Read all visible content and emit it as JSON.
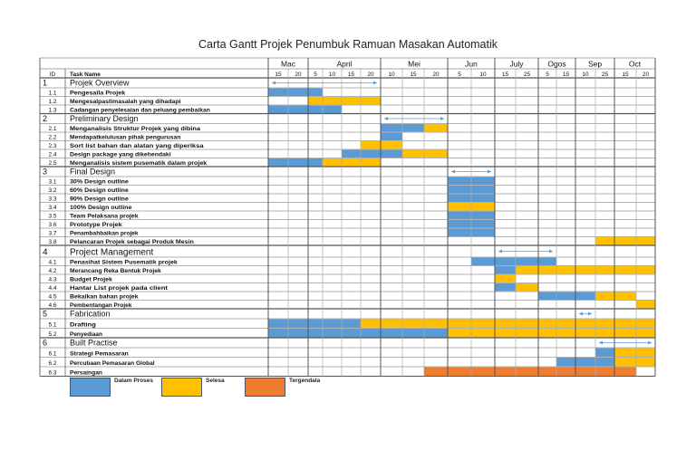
{
  "chart_data": {
    "type": "gantt",
    "title": "Carta Gantt Projek Penumbuk Ramuan Masakan Automatik",
    "header": {
      "id_label": "ID",
      "task_label": "Task Name"
    },
    "months": [
      {
        "name": "Mac",
        "days": [
          "15",
          "20"
        ]
      },
      {
        "name": "April",
        "days": [
          "5",
          "10",
          "15",
          "20"
        ]
      },
      {
        "name": "Mei",
        "days": [
          "10",
          "15",
          "20"
        ]
      },
      {
        "name": "Jun",
        "days": [
          "5",
          "10"
        ]
      },
      {
        "name": "July",
        "days": [
          "15",
          "25"
        ]
      },
      {
        "name": "Ogos",
        "days": [
          "5",
          "15"
        ]
      },
      {
        "name": "Sep",
        "days": [
          "10",
          "25"
        ]
      },
      {
        "name": "Oct",
        "days": [
          "15",
          "20"
        ]
      }
    ],
    "status_colors": {
      "in_progress": "#5b9bd5",
      "done": "#ffc000",
      "delayed": "#ed7d31"
    },
    "legend": [
      {
        "status": "in_progress",
        "label": "Dalam Proses"
      },
      {
        "status": "done",
        "label": "Selesa"
      },
      {
        "status": "delayed",
        "label": "Tergendala"
      }
    ],
    "sections": [
      {
        "id": "1",
        "name": "Projek Overview",
        "span": [
          0,
          5
        ],
        "tasks": [
          {
            "id": "1.1",
            "name": "Pengesaila Projek",
            "bars": [
              {
                "status": "in_progress",
                "start": 0,
                "end": 2
              }
            ]
          },
          {
            "id": "1.2",
            "name": "Mengesalpastimasalah yang dihadapi",
            "bars": [
              {
                "status": "done",
                "start": 2,
                "end": 5
              }
            ]
          },
          {
            "id": "1.3",
            "name": "Cadangan penyelesaian dan peluang pembaikan",
            "bars": [
              {
                "status": "in_progress",
                "start": 0,
                "end": 3
              }
            ]
          }
        ]
      },
      {
        "id": "2",
        "name": "Preliminary Design",
        "span": [
          6,
          8
        ],
        "tasks": [
          {
            "id": "2.1",
            "name": "Menganalisis Struktur Projek yang dibina",
            "bars": [
              {
                "status": "in_progress",
                "start": 6,
                "end": 7
              },
              {
                "status": "done",
                "start": 8,
                "end": 8
              }
            ]
          },
          {
            "id": "2.2",
            "name": "Mendapatkelulusan pihak pengurusan",
            "bars": [
              {
                "status": "in_progress",
                "start": 6,
                "end": 6
              }
            ]
          },
          {
            "id": "2.3",
            "name": "Sort list bahan dan alatan yang diperiksa",
            "bars": [
              {
                "status": "done",
                "start": 5,
                "end": 6
              }
            ]
          },
          {
            "id": "2.4",
            "name": "Design package yang dikehendaki",
            "bars": [
              {
                "status": "in_progress",
                "start": 4,
                "end": 6
              },
              {
                "status": "done",
                "start": 7,
                "end": 8
              }
            ]
          },
          {
            "id": "2.5",
            "name": "Menganalisis sistem pusematik dalam projek",
            "bars": [
              {
                "status": "in_progress",
                "start": 0,
                "end": 2
              },
              {
                "status": "done",
                "start": 3,
                "end": 5
              }
            ]
          }
        ]
      },
      {
        "id": "3",
        "name": "Final Design",
        "span": [
          9,
          10
        ],
        "tasks": [
          {
            "id": "3.1",
            "name": "30% Design outline",
            "bars": [
              {
                "status": "in_progress",
                "start": 9,
                "end": 10
              }
            ]
          },
          {
            "id": "3.2",
            "name": "60% Design outline",
            "bars": [
              {
                "status": "in_progress",
                "start": 9,
                "end": 10
              }
            ]
          },
          {
            "id": "3.3",
            "name": "90% Design outline",
            "bars": [
              {
                "status": "in_progress",
                "start": 9,
                "end": 10
              }
            ]
          },
          {
            "id": "3.4",
            "name": "100% Design outline",
            "bars": [
              {
                "status": "done",
                "start": 9,
                "end": 10
              }
            ]
          },
          {
            "id": "3.5",
            "name": "Team Pelaksana projek",
            "bars": [
              {
                "status": "in_progress",
                "start": 9,
                "end": 10
              }
            ]
          },
          {
            "id": "3.6",
            "name": "Prototype Projek",
            "bars": [
              {
                "status": "in_progress",
                "start": 9,
                "end": 10
              }
            ]
          },
          {
            "id": "3.7",
            "name": "Penambahbaikan projek",
            "bars": [
              {
                "status": "in_progress",
                "start": 9,
                "end": 10
              }
            ]
          },
          {
            "id": "3.8",
            "name": "Pelancaran Projek sebagai Produk Mesin",
            "bars": [
              {
                "status": "done",
                "start": 16,
                "end": 18
              }
            ]
          }
        ]
      },
      {
        "id": "4",
        "name": "Project Management",
        "span": [
          11,
          13
        ],
        "tasks": [
          {
            "id": "4.1",
            "name": "Penasihat Sistem Pusematik projek",
            "bars": [
              {
                "status": "in_progress",
                "start": 10,
                "end": 13
              }
            ]
          },
          {
            "id": "4.2",
            "name": "Merancang Reka Bentuk Projek",
            "bars": [
              {
                "status": "in_progress",
                "start": 11,
                "end": 11
              },
              {
                "status": "done",
                "start": 12,
                "end": 18
              }
            ]
          },
          {
            "id": "4.3",
            "name": "Budget Projek",
            "bars": [
              {
                "status": "done",
                "start": 11,
                "end": 11
              }
            ]
          },
          {
            "id": "4.4",
            "name": "Hantar List projek pada client",
            "bars": [
              {
                "status": "in_progress",
                "start": 11,
                "end": 11
              },
              {
                "status": "done",
                "start": 12,
                "end": 12
              }
            ]
          },
          {
            "id": "4.5",
            "name": "Bekalkan bahan projek",
            "bars": [
              {
                "status": "in_progress",
                "start": 13,
                "end": 15
              },
              {
                "status": "done",
                "start": 16,
                "end": 17
              }
            ]
          },
          {
            "id": "4.6",
            "name": "Pembentangan Projek",
            "bars": [
              {
                "status": "done",
                "start": 18,
                "end": 18
              }
            ]
          }
        ]
      },
      {
        "id": "5",
        "name": "Fabrication",
        "span": [
          15,
          15
        ],
        "tasks": [
          {
            "id": "5.1",
            "name": "Drafting",
            "bars": [
              {
                "status": "in_progress",
                "start": 0,
                "end": 4
              },
              {
                "status": "done",
                "start": 5,
                "end": 18
              }
            ]
          },
          {
            "id": "5.2",
            "name": "Penyediaan",
            "bars": [
              {
                "status": "in_progress",
                "start": 0,
                "end": 8
              },
              {
                "status": "done",
                "start": 9,
                "end": 18
              }
            ]
          }
        ]
      },
      {
        "id": "6",
        "name": "Built Practise",
        "span": [
          16,
          18
        ],
        "tasks": [
          {
            "id": "6.1",
            "name": "Strategi Pemasaran",
            "bars": [
              {
                "status": "in_progress",
                "start": 16,
                "end": 16
              },
              {
                "status": "done",
                "start": 17,
                "end": 18
              }
            ]
          },
          {
            "id": "6.2",
            "name": "Percubaan Pemasaran Global",
            "bars": [
              {
                "status": "in_progress",
                "start": 14,
                "end": 16
              },
              {
                "status": "done",
                "start": 17,
                "end": 18
              }
            ]
          },
          {
            "id": "6.3",
            "name": "Persaingan",
            "bars": [
              {
                "status": "delayed",
                "start": 8,
                "end": 17
              }
            ]
          }
        ]
      }
    ]
  }
}
